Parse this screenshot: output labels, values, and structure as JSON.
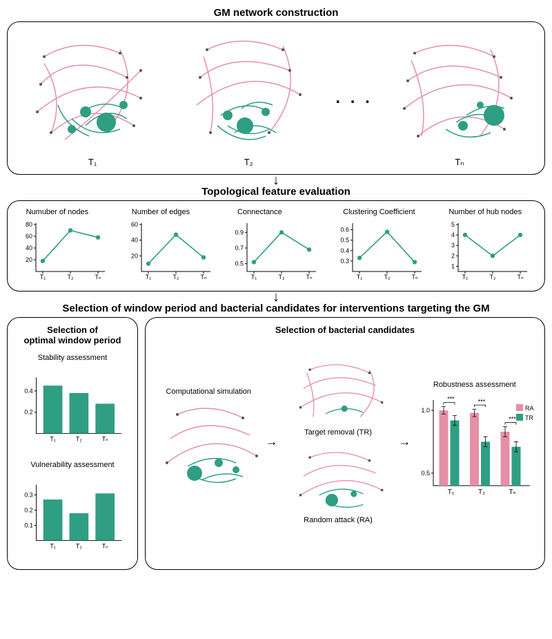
{
  "colors": {
    "teal": "#2f9e82",
    "pink": "#e58fa8",
    "black": "#000000",
    "grid": "#000000"
  },
  "section1": {
    "title": "GM network construction",
    "labels": [
      "T₁",
      "T₂",
      "Tₙ"
    ],
    "ellipsis": ". . ."
  },
  "section2": {
    "title": "Topological feature evaluation",
    "charts": [
      {
        "title": "Numuber of nodes",
        "ylim": [
          0,
          80
        ],
        "yticks": [
          20,
          40,
          60,
          80
        ],
        "values": [
          18,
          70,
          58
        ]
      },
      {
        "title": "Number of edges",
        "ylim": [
          0,
          60
        ],
        "yticks": [
          20,
          40,
          60
        ],
        "values": [
          10,
          47,
          18
        ]
      },
      {
        "title": "Connectance",
        "ylim": [
          0.4,
          1.0
        ],
        "yticks": [
          0.5,
          0.7,
          0.9
        ],
        "values": [
          0.52,
          0.9,
          0.68
        ]
      },
      {
        "title": "Clustering Coefficient",
        "ylim": [
          0.2,
          0.65
        ],
        "yticks": [
          0.3,
          0.4,
          0.5,
          0.6
        ],
        "values": [
          0.33,
          0.58,
          0.29
        ]
      },
      {
        "title": "Number of hub nodes",
        "ylim": [
          0.5,
          5
        ],
        "yticks": [
          1,
          2,
          3,
          4,
          5
        ],
        "values": [
          4,
          2,
          4
        ]
      }
    ],
    "xlabels": [
      "T₁",
      "T₂",
      "Tₙ"
    ]
  },
  "section3": {
    "title": "Selection of window period and bacterial candidates for interventions targeting the GM",
    "left": {
      "title": "Selection of\noptimal window period",
      "stability": {
        "title": "Stability assessment",
        "ylim": [
          0,
          0.5
        ],
        "yticks": [
          0.2,
          0.4
        ],
        "values": [
          0.45,
          0.38,
          0.28
        ]
      },
      "vulnerability": {
        "title": "Vulnerability assessment",
        "ylim": [
          0,
          0.35
        ],
        "yticks": [
          0.1,
          0.2,
          0.3
        ],
        "values": [
          0.27,
          0.18,
          0.31
        ]
      },
      "xlabels": [
        "T₁",
        "T₂",
        "Tₙ"
      ]
    },
    "right": {
      "title": "Selection of bacterial candidates",
      "sim_label": "Computational simulation",
      "tr_label": "Target removal (TR)",
      "ra_label": "Random attack (RA)",
      "robust": {
        "title": "Robustness assessment",
        "ylim": [
          0.4,
          1.05
        ],
        "yticks": [
          0.5,
          1.0
        ],
        "groups": [
          "T₁",
          "T₂",
          "Tₙ"
        ],
        "ra_values": [
          1.0,
          0.98,
          0.83
        ],
        "tr_values": [
          0.92,
          0.75,
          0.71
        ],
        "ra_err": [
          0.03,
          0.03,
          0.04
        ],
        "tr_err": [
          0.04,
          0.04,
          0.04
        ],
        "sig": "***",
        "legend": {
          "ra": "RA",
          "tr": "TR"
        }
      }
    }
  }
}
